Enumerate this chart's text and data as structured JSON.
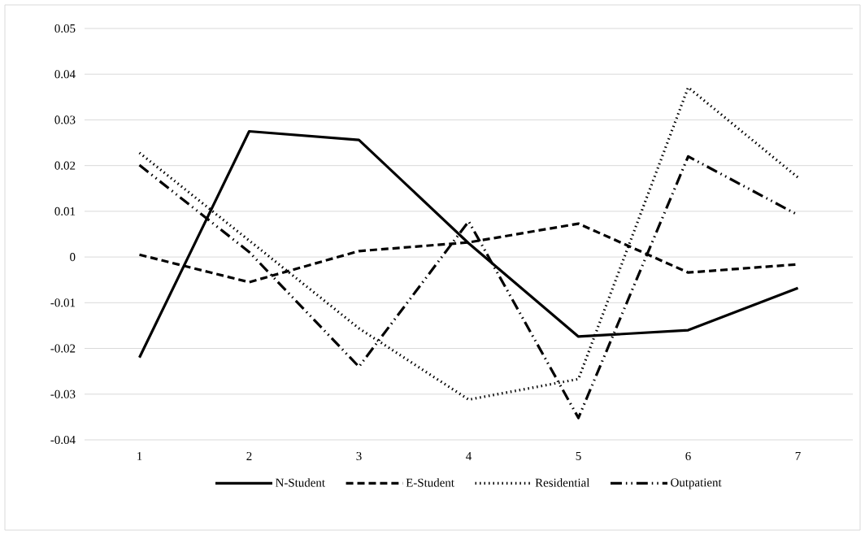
{
  "chart_data": {
    "type": "line",
    "categories": [
      "1",
      "2",
      "3",
      "4",
      "5",
      "6",
      "7"
    ],
    "series": [
      {
        "name": "N-Student",
        "color": "#000000",
        "line_style": "solid",
        "values": [
          -0.022,
          0.0275,
          0.0256,
          0.003,
          -0.0174,
          -0.016,
          -0.0068
        ]
      },
      {
        "name": "E-Student",
        "color": "#000000",
        "line_style": "dashed",
        "values": [
          0.0005,
          -0.0055,
          0.0013,
          0.0032,
          0.0073,
          -0.0034,
          -0.0016
        ]
      },
      {
        "name": "Residential",
        "color": "#000000",
        "line_style": "dotted",
        "values": [
          0.0228,
          0.0036,
          -0.0156,
          -0.0312,
          -0.0267,
          0.0371,
          0.0174
        ]
      },
      {
        "name": "Outpatient",
        "color": "#000000",
        "line_style": "dashdot",
        "values": [
          0.0201,
          0.0011,
          -0.024,
          0.0078,
          -0.0352,
          0.022,
          0.0092
        ]
      }
    ],
    "ylim": [
      -0.04,
      0.05
    ],
    "yticks": [
      -0.04,
      -0.03,
      -0.02,
      -0.01,
      0,
      0.01,
      0.02,
      0.03,
      0.04,
      0.05
    ],
    "grid": "y",
    "legend": "bottom",
    "marker": "none"
  }
}
